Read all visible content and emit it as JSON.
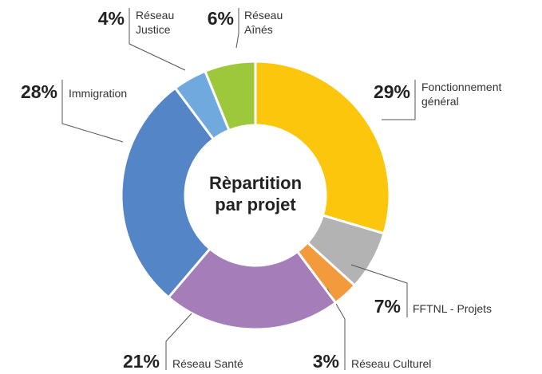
{
  "chart_data": {
    "type": "donut",
    "title": [
      "Rèpartition",
      "par projet"
    ],
    "categories": [
      "Fonctionnement général",
      "FFTNL - Projets",
      "Réseau Culturel",
      "Réseau Santé",
      "Immigration",
      "Réseau Justice",
      "Réseau Aînés"
    ],
    "values": [
      29,
      7,
      3,
      21,
      28,
      4,
      6
    ],
    "value_labels": [
      "29%",
      "7%",
      "3%",
      "21%",
      "28%",
      "4%",
      "6%"
    ],
    "colors": [
      "#fcc60d",
      "#b3b3b3",
      "#f39a3c",
      "#a57db9",
      "#5485c6",
      "#6fa9de",
      "#9dc83b"
    ]
  }
}
